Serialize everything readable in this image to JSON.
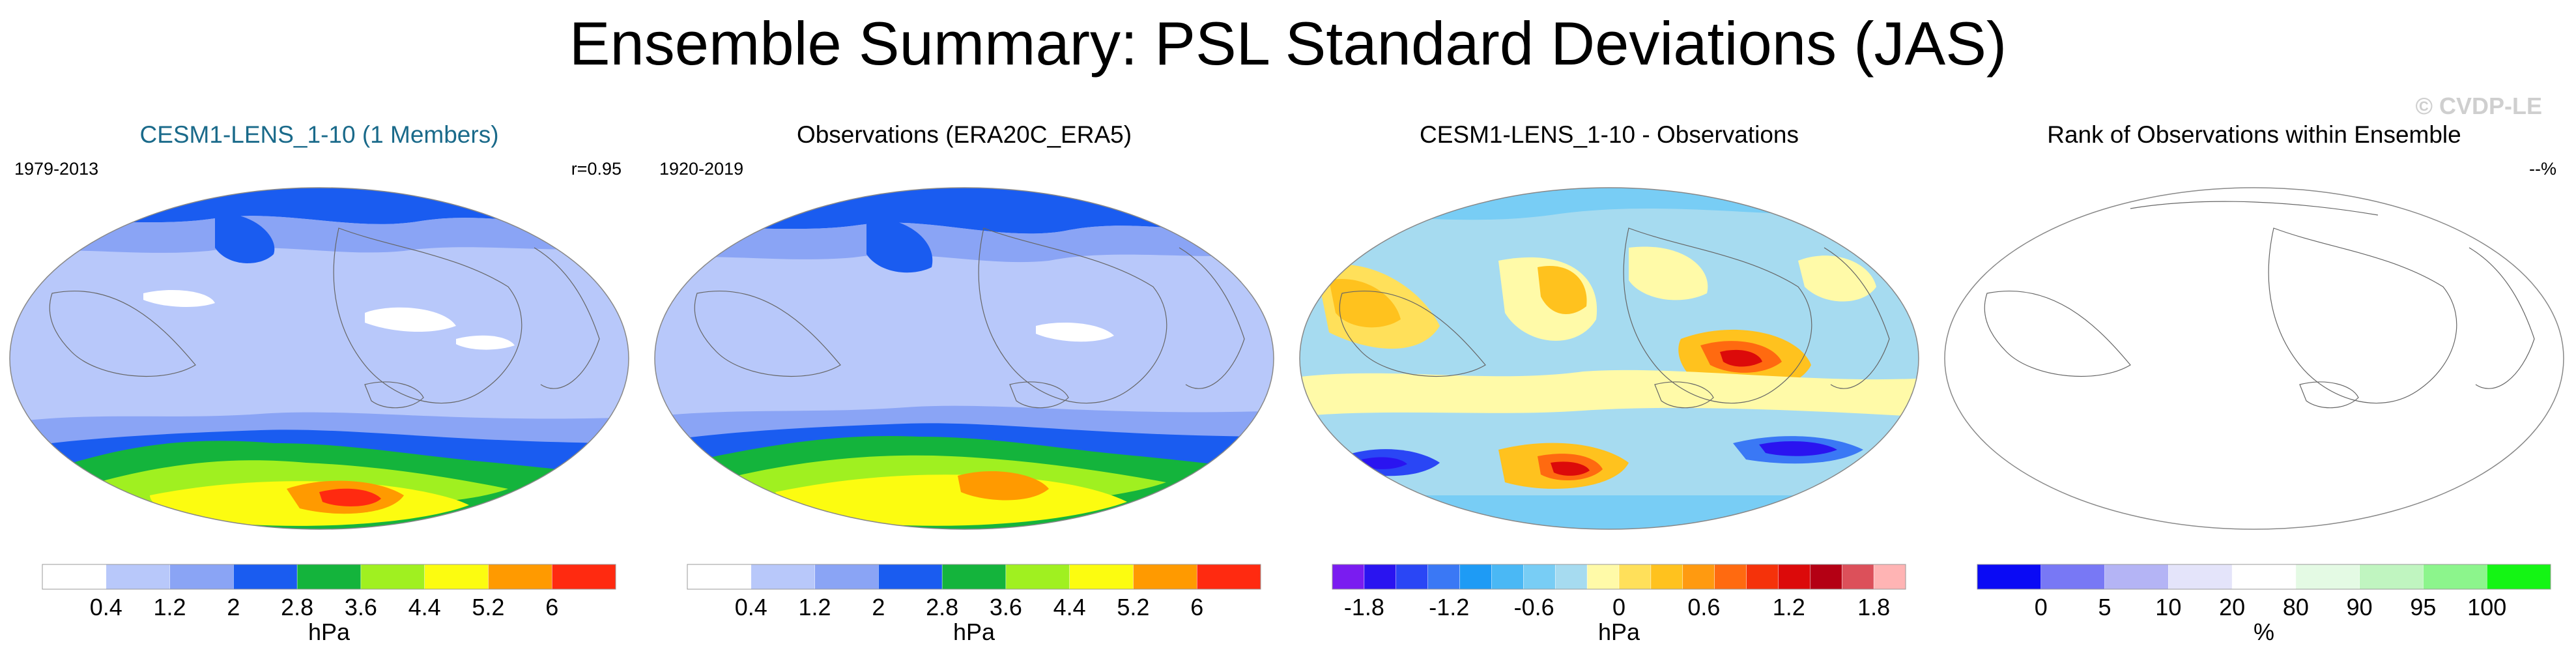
{
  "title": "Ensemble Summary: PSL Standard Deviations (JAS)",
  "watermark": "© CVDP-LE",
  "panels": [
    {
      "title": "CESM1-LENS_1-10 (1 Members)",
      "title_color": "#1a6a8a",
      "left": "1979-2013",
      "right": "r=0.95",
      "colorbar": {
        "unit": "hPa",
        "colors": [
          "#ffffff",
          "#b8c8fa",
          "#8aa4f5",
          "#1a5cf0",
          "#14b43c",
          "#a0f020",
          "#fcfc10",
          "#ff9a00",
          "#ff2a10"
        ],
        "tick_labels": [
          "0.4",
          "1.2",
          "2",
          "2.8",
          "3.6",
          "4.4",
          "5.2",
          "6"
        ]
      }
    },
    {
      "title": "Observations (ERA20C_ERA5)",
      "title_color": "#000000",
      "left": "1920-2019",
      "right": "",
      "colorbar": {
        "unit": "hPa",
        "colors": [
          "#ffffff",
          "#b8c8fa",
          "#8aa4f5",
          "#1a5cf0",
          "#14b43c",
          "#a0f020",
          "#fcfc10",
          "#ff9a00",
          "#ff2a10"
        ],
        "tick_labels": [
          "0.4",
          "1.2",
          "2",
          "2.8",
          "3.6",
          "4.4",
          "5.2",
          "6"
        ]
      }
    },
    {
      "title": "CESM1-LENS_1-10 - Observations",
      "title_color": "#000000",
      "left": "",
      "right": "",
      "colorbar": {
        "unit": "hPa",
        "colors": [
          "#7a1cf0",
          "#2a14f0",
          "#2a46f5",
          "#3a78f5",
          "#1e9bf5",
          "#4ab8f5",
          "#78cdf5",
          "#a6dbf0",
          "#fffaa8",
          "#ffe05a",
          "#ffc21e",
          "#ff9a10",
          "#ff6a10",
          "#f5320a",
          "#dc0a0a",
          "#b40014",
          "#dc505a",
          "#ffb4b4"
        ],
        "tick_labels": [
          "-1.8",
          "-1.2",
          "-0.6",
          "0",
          "0.6",
          "1.2",
          "1.8"
        ]
      }
    },
    {
      "title": "Rank of Observations within Ensemble",
      "title_color": "#000000",
      "left": "",
      "right": "--%",
      "colorbar": {
        "unit": "%",
        "colors": [
          "#0a0af5",
          "#7878f5",
          "#b4b4f5",
          "#e4e4fa",
          "#ffffff",
          "#e4fae4",
          "#c0f5c0",
          "#8cf58c",
          "#14f514"
        ],
        "tick_labels": [
          "0",
          "5",
          "10",
          "20",
          "80",
          "90",
          "95",
          "100"
        ]
      }
    }
  ]
}
